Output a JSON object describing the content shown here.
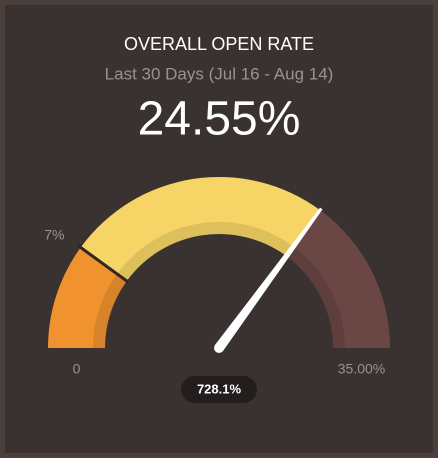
{
  "chart_data": {
    "type": "gauge",
    "title": "OVERALL OPEN RATE",
    "subtitle": "Last 30 Days (Jul 16 - Aug 14)",
    "value": 24.55,
    "value_label": "24.55%",
    "range": [
      0,
      35
    ],
    "ticks": [
      0,
      {
        "value": 35,
        "label": "35.00%"
      }
    ],
    "threshold": {
      "value": 7,
      "label": "7%"
    },
    "badge": "728.1%",
    "colors": {
      "low": "#f0922e",
      "mid": "#f6d566",
      "high": "#6a4744",
      "needle": "#ffffff"
    }
  }
}
